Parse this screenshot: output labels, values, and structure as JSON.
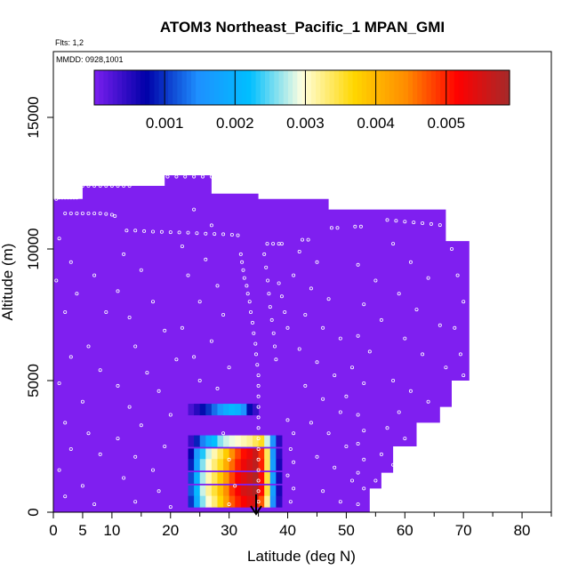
{
  "chart_data": {
    "type": "heatmap",
    "title": "ATOM3 Northeast_Pacific_1 MPAN_GMI",
    "flights_label": "Flts: 1,2",
    "dates_label": "MMDD: 0928,1001",
    "xlabel": "Latitude (deg N)",
    "ylabel": "Altitude (m)",
    "xlim": [
      0,
      85
    ],
    "ylim": [
      0,
      17500
    ],
    "xticks": [
      0,
      5,
      10,
      20,
      30,
      40,
      50,
      60,
      70,
      80
    ],
    "yticks": [
      0,
      5000,
      10000,
      15000
    ],
    "colorbar": {
      "range": [
        0,
        0.0059
      ],
      "ticks": [
        0.001,
        0.002,
        0.003,
        0.004,
        0.005
      ],
      "tick_labels": [
        "0.001",
        "0.002",
        "0.003",
        "0.004",
        "0.005"
      ],
      "colors": [
        "#7b1ff0",
        "#0000a8",
        "#1e90ff",
        "#00bfff",
        "#ffffe0",
        "#ffd700",
        "#ff8c00",
        "#ff0000",
        "#a52a2a"
      ]
    },
    "background_value": 0.0,
    "background_color": "#7f1ff0",
    "curtain_outline": [
      [
        0,
        0
      ],
      [
        0,
        11900
      ],
      [
        5,
        11900
      ],
      [
        5,
        12400
      ],
      [
        19,
        12400
      ],
      [
        19,
        12800
      ],
      [
        27,
        12800
      ],
      [
        27,
        12100
      ],
      [
        35,
        12100
      ],
      [
        35,
        11900
      ],
      [
        47,
        11900
      ],
      [
        47,
        11500
      ],
      [
        67,
        11500
      ],
      [
        67,
        10300
      ],
      [
        71,
        10300
      ],
      [
        71,
        5000
      ],
      [
        68,
        5000
      ],
      [
        68,
        4000
      ],
      [
        66,
        4000
      ],
      [
        66,
        3400
      ],
      [
        62,
        3400
      ],
      [
        62,
        2500
      ],
      [
        58,
        2500
      ],
      [
        58,
        1500
      ],
      [
        56,
        1500
      ],
      [
        56,
        900
      ],
      [
        54,
        900
      ],
      [
        54,
        0
      ]
    ],
    "plume_rows": [
      {
        "altitude": 3900,
        "lat_start": 23,
        "lat_end": 35,
        "values": [
          0.0003,
          0.0005,
          0.0008,
          0.001,
          0.0013,
          0.0016,
          0.0019,
          0.0021,
          0.002,
          0.0015,
          0.0008,
          0.0004
        ]
      },
      {
        "altitude": 2700,
        "lat_start": 23,
        "lat_end": 39,
        "values": [
          0.0004,
          0.0009,
          0.0014,
          0.0019,
          0.0022,
          0.0026,
          0.0028,
          0.0029,
          0.003,
          0.0031,
          0.0032,
          0.0034,
          0.0036,
          0.0028,
          0.0015,
          0.0005
        ]
      },
      {
        "altitude": 2200,
        "lat_start": 23,
        "lat_end": 39,
        "values": [
          0.0007,
          0.0016,
          0.0023,
          0.0028,
          0.0031,
          0.0034,
          0.0038,
          0.0044,
          0.0048,
          0.0051,
          0.0053,
          0.0056,
          0.0049,
          0.0034,
          0.0016,
          0.0005
        ]
      },
      {
        "altitude": 1800,
        "lat_start": 23,
        "lat_end": 39,
        "values": [
          0.0009,
          0.0018,
          0.0026,
          0.003,
          0.0033,
          0.0036,
          0.0041,
          0.0046,
          0.005,
          0.0053,
          0.0055,
          0.0057,
          0.005,
          0.0034,
          0.0017,
          0.0006
        ]
      },
      {
        "altitude": 1300,
        "lat_start": 23,
        "lat_end": 39,
        "values": [
          0.0011,
          0.002,
          0.0027,
          0.0031,
          0.0034,
          0.0038,
          0.0043,
          0.0048,
          0.0052,
          0.0054,
          0.0056,
          0.0058,
          0.0051,
          0.0035,
          0.0017,
          0.0006
        ]
      },
      {
        "altitude": 800,
        "lat_start": 23,
        "lat_end": 39,
        "values": [
          0.0012,
          0.0021,
          0.0028,
          0.0032,
          0.0035,
          0.0039,
          0.0044,
          0.0049,
          0.0052,
          0.0055,
          0.0056,
          0.0058,
          0.0051,
          0.0035,
          0.0017,
          0.0006
        ]
      },
      {
        "altitude": 400,
        "lat_start": 23,
        "lat_end": 39,
        "values": [
          0.001,
          0.0019,
          0.0026,
          0.003,
          0.0033,
          0.0037,
          0.0042,
          0.0047,
          0.005,
          0.0052,
          0.0054,
          0.0055,
          0.0047,
          0.0032,
          0.0015,
          0.0005
        ]
      }
    ],
    "flight_track": [
      [
        0.5,
        11900
      ],
      [
        1,
        11950
      ],
      [
        1.5,
        11950
      ],
      [
        2,
        11950
      ],
      [
        2.5,
        11950
      ],
      [
        3,
        11950
      ],
      [
        3.5,
        11950
      ],
      [
        4,
        11950
      ],
      [
        2,
        11350
      ],
      [
        3,
        11350
      ],
      [
        4,
        11350
      ],
      [
        5,
        11350
      ],
      [
        6,
        11350
      ],
      [
        7,
        11350
      ],
      [
        8,
        11350
      ],
      [
        9,
        11330
      ],
      [
        10,
        11300
      ],
      [
        10.5,
        11250
      ],
      [
        5,
        12400
      ],
      [
        6,
        12400
      ],
      [
        7,
        12400
      ],
      [
        8,
        12400
      ],
      [
        9,
        12400
      ],
      [
        10,
        12400
      ],
      [
        11,
        12400
      ],
      [
        12,
        12400
      ],
      [
        13,
        12400
      ],
      [
        19.5,
        12750
      ],
      [
        21,
        12750
      ],
      [
        22.5,
        12750
      ],
      [
        24,
        12750
      ],
      [
        25.5,
        12750
      ],
      [
        27,
        12750
      ],
      [
        27.5,
        12350
      ],
      [
        28.5,
        12330
      ],
      [
        29.5,
        12300
      ],
      [
        30.5,
        12300
      ],
      [
        31.5,
        12300
      ],
      [
        32.5,
        12300
      ],
      [
        33.5,
        12300
      ],
      [
        12.5,
        10700
      ],
      [
        14,
        10700
      ],
      [
        15.5,
        10680
      ],
      [
        17,
        10660
      ],
      [
        18.5,
        10650
      ],
      [
        20,
        10640
      ],
      [
        21.5,
        10630
      ],
      [
        23,
        10620
      ],
      [
        24.5,
        10600
      ],
      [
        26,
        10580
      ],
      [
        27.5,
        10570
      ],
      [
        29,
        10560
      ],
      [
        30.5,
        10540
      ],
      [
        31.5,
        10520
      ],
      [
        36.5,
        10200
      ],
      [
        37.5,
        10200
      ],
      [
        38.5,
        10200
      ],
      [
        39,
        10200
      ],
      [
        42.5,
        10350
      ],
      [
        43.5,
        10350
      ],
      [
        47.5,
        10800
      ],
      [
        48.5,
        10800
      ],
      [
        51.5,
        10850
      ],
      [
        52.5,
        10850
      ],
      [
        57,
        11100
      ],
      [
        58.5,
        11070
      ],
      [
        60,
        11040
      ],
      [
        61.5,
        11010
      ],
      [
        63,
        10980
      ],
      [
        64.5,
        10950
      ],
      [
        66,
        10910
      ],
      [
        67.5,
        10880
      ],
      [
        69,
        10850
      ],
      [
        70.5,
        10810
      ],
      [
        32,
        9800
      ],
      [
        32.2,
        9500
      ],
      [
        32.4,
        9200
      ],
      [
        32.6,
        8900
      ],
      [
        33,
        8600
      ],
      [
        33.2,
        8300
      ],
      [
        33.5,
        8000
      ],
      [
        33.7,
        7600
      ],
      [
        34,
        7200
      ],
      [
        34.2,
        6800
      ],
      [
        34.5,
        6400
      ],
      [
        34.6,
        6000
      ],
      [
        34.8,
        5600
      ],
      [
        35,
        5200
      ],
      [
        35,
        4800
      ],
      [
        35,
        4400
      ],
      [
        35,
        4000
      ],
      [
        35,
        3600
      ],
      [
        35,
        3200
      ],
      [
        35,
        2800
      ],
      [
        35,
        2400
      ],
      [
        35,
        2000
      ],
      [
        35,
        1600
      ],
      [
        35,
        1200
      ],
      [
        35,
        800
      ],
      [
        35,
        400
      ],
      [
        36,
        9800
      ],
      [
        36.3,
        9300
      ],
      [
        36.6,
        8800
      ],
      [
        36.8,
        8300
      ],
      [
        37,
        7800
      ],
      [
        37.3,
        7300
      ],
      [
        37.6,
        6800
      ],
      [
        37.8,
        6300
      ],
      [
        38,
        5800
      ],
      [
        38.5,
        8700
      ],
      [
        39,
        8200
      ],
      [
        39.5,
        7600
      ],
      [
        40,
        7000
      ],
      [
        1,
        10400
      ],
      [
        3,
        9500
      ],
      [
        0.5,
        8800
      ],
      [
        4,
        8300
      ],
      [
        2,
        7600
      ],
      [
        7,
        9000
      ],
      [
        9,
        7600
      ],
      [
        6,
        6300
      ],
      [
        3,
        5900
      ],
      [
        8,
        5400
      ],
      [
        1,
        4900
      ],
      [
        5,
        4200
      ],
      [
        2,
        3400
      ],
      [
        6,
        3000
      ],
      [
        3,
        2400
      ],
      [
        8,
        2200
      ],
      [
        1,
        1600
      ],
      [
        5,
        1000
      ],
      [
        2,
        600
      ],
      [
        7,
        300
      ],
      [
        12,
        9800
      ],
      [
        15,
        9200
      ],
      [
        11,
        8400
      ],
      [
        17,
        8000
      ],
      [
        13,
        7400
      ],
      [
        19,
        6900
      ],
      [
        14,
        6300
      ],
      [
        21,
        5800
      ],
      [
        16,
        5300
      ],
      [
        11,
        4800
      ],
      [
        18,
        4600
      ],
      [
        13,
        4000
      ],
      [
        20,
        3700
      ],
      [
        15,
        3300
      ],
      [
        11,
        2800
      ],
      [
        19,
        2500
      ],
      [
        14,
        2100
      ],
      [
        17,
        1600
      ],
      [
        12,
        1300
      ],
      [
        18,
        800
      ],
      [
        14,
        400
      ],
      [
        20,
        200
      ],
      [
        24,
        11500
      ],
      [
        27,
        10900
      ],
      [
        22,
        10100
      ],
      [
        26,
        9600
      ],
      [
        23,
        9000
      ],
      [
        28,
        8600
      ],
      [
        25,
        8000
      ],
      [
        29,
        7500
      ],
      [
        22,
        7000
      ],
      [
        27,
        6500
      ],
      [
        24,
        5900
      ],
      [
        30,
        5500
      ],
      [
        25,
        5000
      ],
      [
        28,
        4700
      ],
      [
        42,
        9900
      ],
      [
        45,
        9500
      ],
      [
        41,
        9000
      ],
      [
        44,
        8500
      ],
      [
        47,
        8100
      ],
      [
        43,
        7500
      ],
      [
        46,
        7000
      ],
      [
        49,
        6600
      ],
      [
        42,
        6200
      ],
      [
        45,
        5700
      ],
      [
        48,
        5200
      ],
      [
        43,
        4800
      ],
      [
        46,
        4300
      ],
      [
        49,
        3800
      ],
      [
        44,
        3400
      ],
      [
        47,
        3000
      ],
      [
        50,
        2500
      ],
      [
        45,
        2100
      ],
      [
        48,
        1700
      ],
      [
        51,
        1200
      ],
      [
        46,
        800
      ],
      [
        49,
        400
      ],
      [
        52,
        9400
      ],
      [
        55,
        8800
      ],
      [
        53,
        7900
      ],
      [
        56,
        7300
      ],
      [
        52,
        6700
      ],
      [
        54,
        6100
      ],
      [
        51,
        5500
      ],
      [
        53,
        4900
      ],
      [
        50,
        4400
      ],
      [
        52,
        3700
      ],
      [
        53,
        3100
      ],
      [
        52,
        2600
      ],
      [
        53,
        2000
      ],
      [
        52,
        1500
      ],
      [
        53,
        900
      ],
      [
        52,
        300
      ],
      [
        58,
        10200
      ],
      [
        61,
        9500
      ],
      [
        64,
        8900
      ],
      [
        59,
        8300
      ],
      [
        62,
        7700
      ],
      [
        66,
        7100
      ],
      [
        60,
        6600
      ],
      [
        63,
        6000
      ],
      [
        67,
        5500
      ],
      [
        58,
        5000
      ],
      [
        61,
        4600
      ],
      [
        64,
        4200
      ],
      [
        59,
        3800
      ],
      [
        57,
        3200
      ],
      [
        60,
        2800
      ],
      [
        56,
        2200
      ],
      [
        58,
        1800
      ],
      [
        55,
        1200
      ],
      [
        68,
        10000
      ],
      [
        69,
        9000
      ],
      [
        70,
        8000
      ],
      [
        68.5,
        7000
      ],
      [
        69.5,
        6000
      ],
      [
        70,
        5200
      ],
      [
        40,
        3500
      ],
      [
        41,
        3000
      ],
      [
        40.5,
        2400
      ],
      [
        41,
        1900
      ],
      [
        40,
        1400
      ],
      [
        41,
        900
      ],
      [
        40.5,
        400
      ],
      [
        30,
        2000
      ],
      [
        31,
        1000
      ],
      [
        30,
        300
      ],
      [
        29,
        3000
      ]
    ]
  }
}
